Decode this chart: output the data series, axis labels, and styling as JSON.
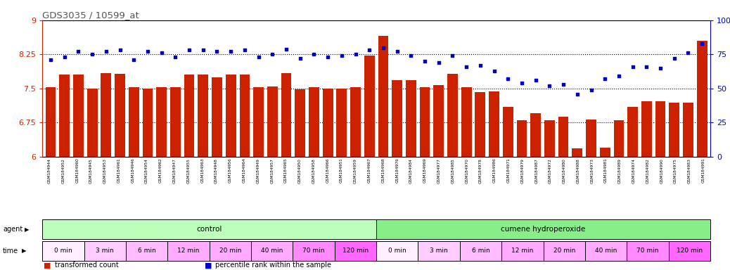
{
  "title": "GDS3035 / 10599_at",
  "samples": [
    "GSM184944",
    "GSM184952",
    "GSM184960",
    "GSM184945",
    "GSM184953",
    "GSM184961",
    "GSM184946",
    "GSM184954",
    "GSM184962",
    "GSM184947",
    "GSM184955",
    "GSM184963",
    "GSM184948",
    "GSM184956",
    "GSM184964",
    "GSM184949",
    "GSM184957",
    "GSM184965",
    "GSM184950",
    "GSM184958",
    "GSM184966",
    "GSM184951",
    "GSM184959",
    "GSM184967",
    "GSM184968",
    "GSM184976",
    "GSM184984",
    "GSM184969",
    "GSM184977",
    "GSM184985",
    "GSM184970",
    "GSM184978",
    "GSM184986",
    "GSM184971",
    "GSM184979",
    "GSM184987",
    "GSM184972",
    "GSM184980",
    "GSM184988",
    "GSM184973",
    "GSM184981",
    "GSM184989",
    "GSM184974",
    "GSM184982",
    "GSM184990",
    "GSM184975",
    "GSM184983",
    "GSM184991"
  ],
  "bar_values": [
    7.52,
    7.8,
    7.8,
    7.5,
    7.84,
    7.82,
    7.52,
    7.5,
    7.52,
    7.52,
    7.8,
    7.8,
    7.75,
    7.8,
    7.8,
    7.52,
    7.55,
    7.83,
    7.48,
    7.52,
    7.5,
    7.5,
    7.52,
    8.22,
    8.65,
    7.68,
    7.68,
    7.52,
    7.58,
    7.82,
    7.52,
    7.42,
    7.44,
    7.1,
    6.8,
    6.95,
    6.8,
    6.88,
    6.18,
    6.82,
    6.2,
    6.8,
    7.1,
    7.22,
    7.22,
    7.18,
    7.18,
    8.55
  ],
  "percentile_values": [
    71,
    73,
    77,
    75,
    77,
    78,
    71,
    77,
    76,
    73,
    78,
    78,
    77,
    77,
    78,
    73,
    75,
    79,
    72,
    75,
    73,
    74,
    75,
    78,
    80,
    77,
    74,
    70,
    69,
    74,
    66,
    67,
    63,
    57,
    54,
    56,
    52,
    53,
    46,
    49,
    57,
    59,
    66,
    66,
    65,
    72,
    76,
    83
  ],
  "ylim_left": [
    6,
    9
  ],
  "ylim_right": [
    0,
    100
  ],
  "yticks_left": [
    6,
    6.75,
    7.5,
    8.25,
    9
  ],
  "yticks_right": [
    0,
    25,
    50,
    75,
    100
  ],
  "ytick_labels_left": [
    "6",
    "6.75",
    "7.5",
    "8.25",
    "9"
  ],
  "ytick_labels_right": [
    "0",
    "25",
    "50",
    "75",
    "100%"
  ],
  "hlines": [
    6.75,
    7.5,
    8.25
  ],
  "bar_color": "#cc2200",
  "dot_color": "#0000cc",
  "legend_bar_label": "transformed count",
  "legend_dot_label": "percentile rank within the sample",
  "background_color": "#ffffff",
  "title_color": "#555555",
  "left_axis_color": "#cc2200",
  "right_axis_color": "#0000cc",
  "agent_groups": [
    {
      "label": "control",
      "start": 0,
      "end": 23,
      "color": "#bbffbb"
    },
    {
      "label": "cumene hydroperoxide",
      "start": 24,
      "end": 47,
      "color": "#88ee88"
    }
  ],
  "time_colors": [
    "#ffddff",
    "#ffccff",
    "#ffbbff",
    "#ffaaff",
    "#ffaaff",
    "#ffaaff",
    "#ff88ff",
    "#ff66ff"
  ],
  "time_labels": [
    "0 min",
    "3 min",
    "6 min",
    "12 min",
    "20 min",
    "40 min",
    "70 min",
    "120 min"
  ]
}
